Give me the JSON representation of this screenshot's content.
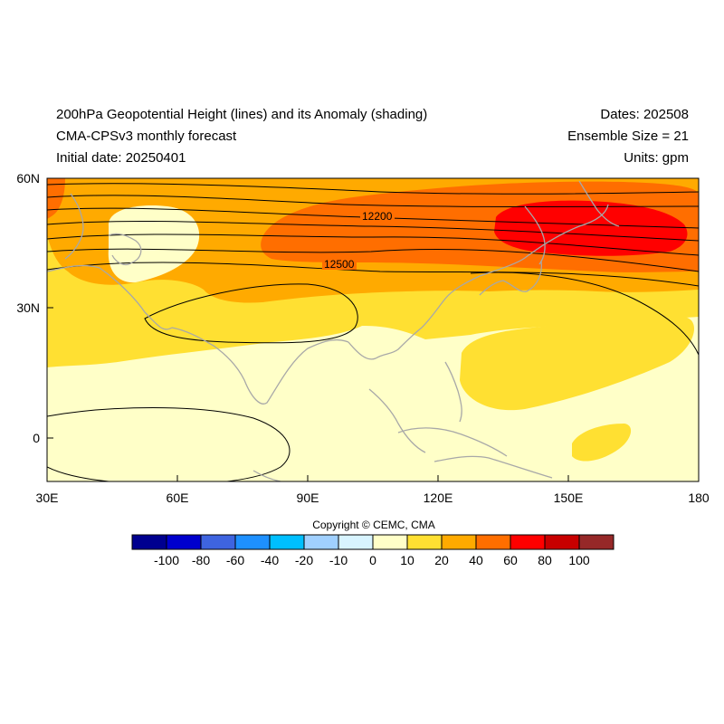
{
  "header": {
    "title_line1": "200hPa Geopotential Height (lines) and its Anomaly (shading)",
    "title_line2": "CMA-CPSv3 monthly forecast",
    "title_line3": "Initial date: 20250401",
    "dates": "Dates: 202508",
    "ensemble": "Ensemble Size = 21",
    "units": "Units: gpm"
  },
  "map": {
    "lon_range": [
      30,
      180
    ],
    "lat_range": [
      -10,
      60
    ],
    "lon_ticks": [
      "30E",
      "60E",
      "90E",
      "120E",
      "150E",
      "180"
    ],
    "lat_ticks": [
      "60N",
      "30N",
      "0"
    ],
    "contour_labels": [
      "12200",
      "12500"
    ]
  },
  "colorbar": {
    "copyright": "Copyright © CEMC, CMA",
    "tick_labels": [
      "-100",
      "-80",
      "-60",
      "-40",
      "-20",
      "-10",
      "0",
      "10",
      "20",
      "40",
      "60",
      "80",
      "100"
    ],
    "colors": [
      "#00008f",
      "#0000cd",
      "#3e64e0",
      "#1e90ff",
      "#00bfff",
      "#a0d0ff",
      "#d8f4ff",
      "#ffffc8",
      "#ffe032",
      "#ffaa00",
      "#ff6e00",
      "#ff0000",
      "#c80000",
      "#962828"
    ]
  }
}
